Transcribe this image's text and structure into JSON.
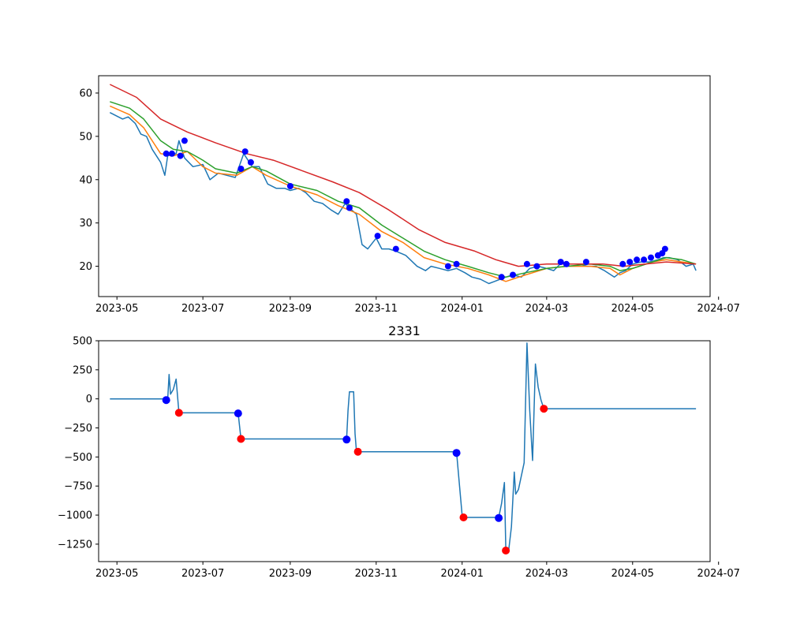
{
  "colors": {
    "price": "#1f77b4",
    "ma_short": "#ff7f0e",
    "ma_mid": "#2ca02c",
    "ma_long": "#d62728",
    "buy_marker": "#0000ff",
    "sell_marker": "#ff0000"
  },
  "chart_data": [
    {
      "type": "line",
      "title": "",
      "xlabel": "",
      "ylabel": "",
      "x_axis": "date",
      "xlim": [
        "2023-04-18",
        "2024-06-25"
      ],
      "ylim": [
        13,
        64
      ],
      "grid": false,
      "x_ticks": [
        "2023-05-01",
        "2023-07-01",
        "2023-09-01",
        "2023-11-01",
        "2024-01-01",
        "2024-03-01",
        "2024-05-01",
        "2024-07-01"
      ],
      "x_tick_labels": [
        "2023-05",
        "2023-07",
        "2023-09",
        "2023-11",
        "2024-01",
        "2024-03",
        "2024-05",
        "2024-07"
      ],
      "y_ticks": [
        20,
        30,
        40,
        50,
        60
      ],
      "y_tick_labels": [
        "20",
        "30",
        "40",
        "50",
        "60"
      ],
      "series": [
        {
          "key": "price",
          "x": [
            "2023-04-26",
            "2023-05-05",
            "2023-05-09",
            "2023-05-14",
            "2023-05-18",
            "2023-05-22",
            "2023-05-26",
            "2023-06-01",
            "2023-06-04",
            "2023-06-06",
            "2023-06-12",
            "2023-06-14",
            "2023-06-18",
            "2023-06-24",
            "2023-07-01",
            "2023-07-06",
            "2023-07-12",
            "2023-07-18",
            "2023-07-24",
            "2023-07-30",
            "2023-08-01",
            "2023-08-05",
            "2023-08-10",
            "2023-08-16",
            "2023-08-22",
            "2023-08-28",
            "2023-09-01",
            "2023-09-07",
            "2023-09-12",
            "2023-09-18",
            "2023-09-24",
            "2023-09-30",
            "2023-10-05",
            "2023-10-10",
            "2023-10-13",
            "2023-10-18",
            "2023-10-22",
            "2023-10-26",
            "2023-11-01",
            "2023-11-05",
            "2023-11-10",
            "2023-11-15",
            "2023-11-22",
            "2023-11-30",
            "2023-12-06",
            "2023-12-10",
            "2023-12-16",
            "2023-12-22",
            "2023-12-28",
            "2024-01-03",
            "2024-01-08",
            "2024-01-14",
            "2024-01-20",
            "2024-01-24",
            "2024-01-28",
            "2024-02-01",
            "2024-02-06",
            "2024-02-12",
            "2024-02-18",
            "2024-02-24",
            "2024-03-01",
            "2024-03-06",
            "2024-03-12",
            "2024-03-18",
            "2024-03-24",
            "2024-03-30",
            "2024-04-05",
            "2024-04-11",
            "2024-04-18",
            "2024-04-22",
            "2024-04-26",
            "2024-05-01",
            "2024-05-07",
            "2024-05-13",
            "2024-05-19",
            "2024-05-23",
            "2024-05-27",
            "2024-06-02",
            "2024-06-08",
            "2024-06-13",
            "2024-06-15"
          ],
          "y": [
            55.5,
            54.0,
            54.5,
            53.0,
            50.5,
            50.0,
            47.0,
            44.0,
            41.0,
            45.5,
            46.0,
            49.0,
            45.0,
            43.0,
            43.5,
            40.0,
            41.5,
            41.0,
            40.5,
            46.0,
            45.0,
            43.0,
            43.0,
            39.0,
            38.0,
            38.0,
            37.5,
            38.0,
            37.0,
            35.0,
            34.5,
            33.0,
            32.0,
            34.5,
            33.5,
            32.0,
            25.0,
            24.0,
            26.5,
            24.0,
            24.0,
            23.5,
            22.5,
            20.0,
            19.0,
            20.0,
            19.5,
            19.0,
            19.5,
            18.5,
            17.5,
            17.0,
            16.0,
            16.5,
            17.0,
            17.5,
            18.0,
            17.5,
            19.5,
            20.0,
            19.5,
            19.0,
            21.0,
            20.5,
            20.5,
            20.0,
            20.0,
            19.0,
            17.5,
            18.5,
            19.0,
            20.5,
            21.0,
            21.0,
            21.5,
            22.0,
            22.0,
            21.5,
            20.0,
            20.5,
            19.0
          ]
        },
        {
          "key": "ma_short",
          "x": [
            "2023-04-26",
            "2023-05-10",
            "2023-05-20",
            "2023-06-01",
            "2023-06-10",
            "2023-06-20",
            "2023-07-01",
            "2023-07-10",
            "2023-07-25",
            "2023-08-05",
            "2023-08-15",
            "2023-09-01",
            "2023-09-20",
            "2023-10-05",
            "2023-10-20",
            "2023-11-05",
            "2023-11-20",
            "2023-12-05",
            "2023-12-20",
            "2024-01-05",
            "2024-01-20",
            "2024-02-01",
            "2024-02-15",
            "2024-03-01",
            "2024-03-15",
            "2024-04-01",
            "2024-04-15",
            "2024-04-22",
            "2024-05-01",
            "2024-05-15",
            "2024-05-25",
            "2024-06-05",
            "2024-06-15"
          ],
          "y": [
            57.0,
            55.0,
            52.0,
            46.0,
            45.5,
            46.5,
            43.0,
            41.5,
            41.0,
            43.0,
            41.0,
            38.5,
            36.5,
            34.0,
            32.0,
            28.0,
            25.5,
            22.0,
            20.5,
            19.5,
            18.0,
            16.5,
            18.0,
            19.5,
            20.0,
            20.0,
            19.5,
            18.0,
            19.5,
            21.0,
            21.5,
            21.0,
            20.5
          ]
        },
        {
          "key": "ma_mid",
          "x": [
            "2023-04-26",
            "2023-05-10",
            "2023-05-20",
            "2023-06-01",
            "2023-06-10",
            "2023-06-20",
            "2023-07-01",
            "2023-07-10",
            "2023-07-25",
            "2023-08-05",
            "2023-08-15",
            "2023-09-01",
            "2023-09-20",
            "2023-10-05",
            "2023-10-20",
            "2023-11-05",
            "2023-11-20",
            "2023-12-05",
            "2023-12-20",
            "2024-01-05",
            "2024-01-20",
            "2024-02-01",
            "2024-02-15",
            "2024-03-01",
            "2024-03-15",
            "2024-04-01",
            "2024-04-15",
            "2024-04-22",
            "2024-05-01",
            "2024-05-15",
            "2024-05-25",
            "2024-06-05",
            "2024-06-15"
          ],
          "y": [
            58.0,
            56.5,
            54.0,
            49.0,
            47.0,
            46.5,
            44.5,
            42.5,
            41.5,
            43.0,
            42.0,
            39.0,
            37.5,
            35.0,
            33.5,
            29.5,
            26.5,
            23.5,
            21.5,
            20.0,
            18.5,
            17.5,
            18.5,
            19.5,
            20.0,
            20.5,
            20.0,
            19.0,
            19.5,
            21.0,
            22.0,
            21.5,
            20.5
          ]
        },
        {
          "key": "ma_long",
          "x": [
            "2023-04-26",
            "2023-05-15",
            "2023-06-01",
            "2023-06-20",
            "2023-07-10",
            "2023-08-01",
            "2023-08-20",
            "2023-09-10",
            "2023-10-01",
            "2023-10-20",
            "2023-11-10",
            "2023-12-01",
            "2023-12-20",
            "2024-01-10",
            "2024-01-25",
            "2024-02-10",
            "2024-03-01",
            "2024-03-20",
            "2024-04-10",
            "2024-04-25",
            "2024-05-10",
            "2024-05-25",
            "2024-06-15"
          ],
          "y": [
            62.0,
            59.0,
            54.0,
            51.0,
            48.5,
            46.0,
            44.5,
            42.0,
            39.5,
            37.0,
            33.0,
            28.5,
            25.5,
            23.5,
            21.5,
            20.0,
            20.5,
            20.5,
            20.5,
            20.0,
            20.5,
            21.0,
            20.5
          ]
        }
      ],
      "markers": [
        {
          "color_key": "buy_marker",
          "size": 4,
          "x": [
            "2023-06-05",
            "2023-06-09",
            "2023-06-15",
            "2023-06-18",
            "2023-07-28",
            "2023-07-31",
            "2023-08-04",
            "2023-09-01",
            "2023-10-11",
            "2023-10-13",
            "2023-11-02",
            "2023-11-15",
            "2023-12-22",
            "2023-12-28",
            "2024-01-29",
            "2024-02-06",
            "2024-02-16",
            "2024-02-23",
            "2024-03-11",
            "2024-03-15",
            "2024-03-29",
            "2024-04-24",
            "2024-04-29",
            "2024-05-04",
            "2024-05-09",
            "2024-05-14",
            "2024-05-19",
            "2024-05-22",
            "2024-05-24"
          ],
          "y": [
            46.0,
            46.0,
            45.5,
            49.0,
            42.5,
            46.5,
            44.0,
            38.5,
            35.0,
            33.5,
            27.0,
            24.0,
            20.0,
            20.5,
            17.5,
            18.0,
            20.5,
            20.0,
            21.0,
            20.5,
            21.0,
            20.5,
            21.0,
            21.5,
            21.5,
            22.0,
            22.5,
            23.0,
            24.0
          ]
        }
      ]
    },
    {
      "type": "line",
      "title": "2331",
      "xlabel": "",
      "ylabel": "",
      "x_axis": "date",
      "xlim": [
        "2023-04-18",
        "2024-06-25"
      ],
      "ylim": [
        -1400,
        500
      ],
      "grid": false,
      "x_ticks": [
        "2023-05-01",
        "2023-07-01",
        "2023-09-01",
        "2023-11-01",
        "2024-01-01",
        "2024-03-01",
        "2024-05-01",
        "2024-07-01"
      ],
      "x_tick_labels": [
        "2023-05",
        "2023-07",
        "2023-09",
        "2023-11",
        "2024-01",
        "2024-03",
        "2024-05",
        "2024-07"
      ],
      "y_ticks": [
        -1250,
        -1000,
        -750,
        -500,
        -250,
        0,
        250,
        500
      ],
      "y_tick_labels": [
        "−1250",
        "−1000",
        "−750",
        "−500",
        "−250",
        "0",
        "250",
        "500"
      ],
      "series": [
        {
          "key": "price",
          "x": [
            "2023-04-26",
            "2023-06-05",
            "2023-06-06",
            "2023-06-07",
            "2023-06-08",
            "2023-06-10",
            "2023-06-12",
            "2023-06-14",
            "2023-07-26",
            "2023-07-28",
            "2023-10-11",
            "2023-10-12",
            "2023-10-13",
            "2023-10-16",
            "2023-10-17",
            "2023-10-18",
            "2023-10-19",
            "2023-12-28",
            "2024-01-01",
            "2024-01-02",
            "2024-01-27",
            "2024-01-29",
            "2024-01-31",
            "2024-02-01",
            "2024-02-03",
            "2024-02-05",
            "2024-02-07",
            "2024-02-08",
            "2024-02-10",
            "2024-02-14",
            "2024-02-16",
            "2024-02-18",
            "2024-02-20",
            "2024-02-22",
            "2024-02-24",
            "2024-02-26",
            "2024-02-28",
            "2024-06-15"
          ],
          "y": [
            0,
            0,
            -10,
            210,
            40,
            80,
            170,
            -120,
            -120,
            -345,
            -345,
            -100,
            60,
            60,
            -300,
            -455,
            -455,
            -455,
            -1000,
            -1020,
            -1020,
            -900,
            -720,
            -1300,
            -1310,
            -1100,
            -630,
            -820,
            -780,
            -550,
            480,
            -100,
            -530,
            300,
            100,
            -10,
            -85,
            -85
          ]
        }
      ],
      "markers": [
        {
          "color_key": "buy_marker",
          "size": 5,
          "x": [
            "2023-06-05",
            "2023-07-26",
            "2023-10-11",
            "2023-12-28",
            "2024-01-27"
          ],
          "y": [
            -10,
            -125,
            -350,
            -465,
            -1025
          ]
        },
        {
          "color_key": "sell_marker",
          "size": 5,
          "x": [
            "2023-06-14",
            "2023-07-28",
            "2023-10-19",
            "2024-01-02",
            "2024-02-01",
            "2024-02-28"
          ],
          "y": [
            -120,
            -345,
            -455,
            -1020,
            -1305,
            -85
          ]
        }
      ]
    }
  ]
}
